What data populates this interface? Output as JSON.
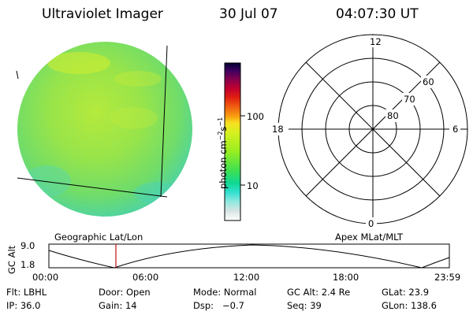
{
  "header": {
    "instrument": "Ultraviolet Imager",
    "date": "30 Jul 07",
    "time": "04:07:30 UT"
  },
  "colorbar": {
    "unit_label": "photon cm",
    "unit_sup1": "−2",
    "unit_mid": "s",
    "unit_sup2": "−1",
    "tick_100": "100",
    "tick_10": "10",
    "colors": [
      "#ffffff",
      "#e0e8e8",
      "#b8e0e0",
      "#80e8e0",
      "#30e0d8",
      "#00d8c0",
      "#28e070",
      "#60e840",
      "#a0f020",
      "#d8f020",
      "#f8e020",
      "#f8b010",
      "#f07810",
      "#e03010",
      "#c00020",
      "#800040",
      "#400060",
      "#000040"
    ]
  },
  "labels": {
    "geographic": "Geographic Lat/Lon",
    "apex": "Apex MLat/MLT"
  },
  "polar_plot": {
    "mlt_top": "12",
    "mlt_right": "6",
    "mlt_left": "18",
    "mlt_bottom": "0",
    "lat_60": "60",
    "lat_70": "70",
    "lat_80": "80"
  },
  "altitude_strip": {
    "axis_title": "GC Alt",
    "y_top": "9.0",
    "y_bottom": "1.8",
    "time_ticks": [
      "00:00",
      "06:00",
      "12:00",
      "18:00",
      "23:59"
    ],
    "current_marker_color": "#c01010"
  },
  "footer": {
    "row1": [
      {
        "label": "Flt: LBHL"
      },
      {
        "label": "Door: Open"
      },
      {
        "label": "Mode: Normal"
      },
      {
        "label": "GC Alt: 2.4 Re"
      },
      {
        "label": "GLat:  23.9"
      }
    ],
    "row2": [
      {
        "label": "IP: 36.0"
      },
      {
        "label": "Gain: 14"
      },
      {
        "label": "Dsp:   −0.7"
      },
      {
        "label": "Seq: 39"
      },
      {
        "label": "GLon: 138.6"
      }
    ]
  }
}
